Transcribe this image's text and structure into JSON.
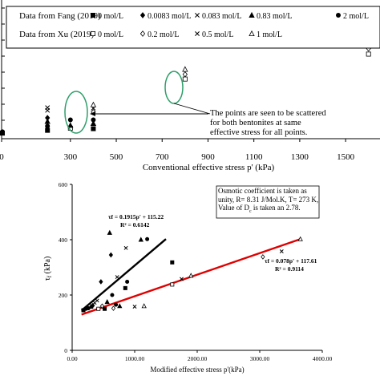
{
  "chart_data": [
    {
      "type": "scatter",
      "title": "",
      "xlabel": "Conventional effective stress p' (kPa)",
      "ylabel": "",
      "xlim": [
        0,
        1650
      ],
      "ylim": [
        0,
        500
      ],
      "x_ticks": [
        "0",
        "300",
        "500",
        "700",
        "900",
        "1100",
        "1300",
        "1500"
      ],
      "x_tick_values": [
        0,
        300,
        500,
        700,
        900,
        1100,
        1300,
        1500
      ],
      "grid": false,
      "legend": {
        "placement": "top",
        "groups": [
          {
            "source": "Data from Fang (2019)",
            "entries": [
              {
                "symbol": "■",
                "label": "0 mol/L"
              },
              {
                "symbol": "◆",
                "label": "0.0083 mol/L"
              },
              {
                "symbol": "✕",
                "label": "0.083 mol/L"
              },
              {
                "symbol": "▲",
                "label": "0.83 mol/L"
              },
              {
                "symbol": "●",
                "label": "2 mol/L"
              }
            ]
          },
          {
            "source": "Data from Xu (2019)",
            "entries": [
              {
                "symbol": "□",
                "label": "0 mol/L"
              },
              {
                "symbol": "◇",
                "label": "0.2 mol/L"
              },
              {
                "symbol": "✕",
                "label": "0.5 mol/L"
              },
              {
                "symbol": "△",
                "label": "1 mol/L"
              }
            ]
          }
        ]
      },
      "annotation": "The points are seen to be scattered for both bentonites at same effective stress for all points.",
      "points": [
        {
          "x": 0,
          "y": 20,
          "marker": "square",
          "fill": true
        },
        {
          "x": 0,
          "y": 25,
          "marker": "circle",
          "fill": true
        },
        {
          "x": 200,
          "y": 30,
          "marker": "square",
          "fill": true
        },
        {
          "x": 200,
          "y": 45,
          "marker": "circle",
          "fill": true
        },
        {
          "x": 200,
          "y": 62,
          "marker": "triangle",
          "fill": true
        },
        {
          "x": 200,
          "y": 75,
          "marker": "diamond",
          "fill": true
        },
        {
          "x": 200,
          "y": 102,
          "marker": "cross",
          "fill": false
        },
        {
          "x": 200,
          "y": 112,
          "marker": "cross",
          "fill": false
        },
        {
          "x": 300,
          "y": 38,
          "marker": "square",
          "fill": false
        },
        {
          "x": 300,
          "y": 48,
          "marker": "triangle",
          "fill": true
        },
        {
          "x": 300,
          "y": 68,
          "marker": "circle",
          "fill": true
        },
        {
          "x": 400,
          "y": 36,
          "marker": "square",
          "fill": true
        },
        {
          "x": 400,
          "y": 55,
          "marker": "triangle",
          "fill": true
        },
        {
          "x": 400,
          "y": 68,
          "marker": "circle",
          "fill": true
        },
        {
          "x": 400,
          "y": 96,
          "marker": "diamond",
          "fill": false
        },
        {
          "x": 400,
          "y": 110,
          "marker": "cross",
          "fill": false
        },
        {
          "x": 400,
          "y": 122,
          "marker": "triangle",
          "fill": false
        },
        {
          "x": 800,
          "y": 215,
          "marker": "square",
          "fill": false
        },
        {
          "x": 800,
          "y": 232,
          "marker": "diamond",
          "fill": false
        },
        {
          "x": 800,
          "y": 250,
          "marker": "triangle",
          "fill": false
        },
        {
          "x": 1600,
          "y": 305,
          "marker": "square",
          "fill": false
        },
        {
          "x": 1600,
          "y": 325,
          "marker": "diamond",
          "fill": false
        },
        {
          "x": 1600,
          "y": 343,
          "marker": "cross",
          "fill": false
        },
        {
          "x": 1600,
          "y": 367,
          "marker": "triangle",
          "fill": false
        }
      ]
    },
    {
      "type": "scatter",
      "title": "",
      "xlabel": "Modified effective stress p'(kPa)",
      "ylabel": "τf (kPa)",
      "xlim": [
        0,
        4000
      ],
      "ylim": [
        0,
        600
      ],
      "x_ticks": [
        "0.00",
        "1000.00",
        "2000.00",
        "3000.00",
        "4000.00"
      ],
      "x_tick_values": [
        0,
        1000,
        2000,
        3000,
        4000
      ],
      "y_ticks": [
        "0",
        "200",
        "400",
        "600"
      ],
      "y_tick_values": [
        0,
        200,
        400,
        600
      ],
      "grid": false,
      "info_box": "Osmotic coefficient is taken as unity, R= 8.31 J/Mol.K, T= 273 K, Value of Dc is taken an 2.78.",
      "fits": [
        {
          "equation": "τf = 0.1915p' + 115.22",
          "r2": "R² = 0.6142",
          "slope": 0.1915,
          "intercept": 115.22,
          "x_range": [
            150,
            1500
          ],
          "color": "#000000"
        },
        {
          "equation": "τf = 0.078p' + 117.61",
          "r2": "R² = 0.9114",
          "slope": 0.078,
          "intercept": 117.61,
          "x_range": [
            150,
            3650
          ],
          "color": "#e00000"
        }
      ],
      "points": [
        {
          "x": 180,
          "y": 145,
          "marker": "square",
          "fill": true
        },
        {
          "x": 220,
          "y": 150,
          "marker": "circle",
          "fill": true
        },
        {
          "x": 260,
          "y": 152,
          "marker": "circle",
          "fill": true
        },
        {
          "x": 300,
          "y": 158,
          "marker": "triangle",
          "fill": true
        },
        {
          "x": 330,
          "y": 162,
          "marker": "diamond",
          "fill": true
        },
        {
          "x": 360,
          "y": 172,
          "marker": "cross",
          "fill": false
        },
        {
          "x": 400,
          "y": 180,
          "marker": "cross",
          "fill": false
        },
        {
          "x": 420,
          "y": 150,
          "marker": "square",
          "fill": false
        },
        {
          "x": 460,
          "y": 248,
          "marker": "diamond",
          "fill": true
        },
        {
          "x": 480,
          "y": 160,
          "marker": "diamond",
          "fill": false
        },
        {
          "x": 520,
          "y": 150,
          "marker": "square",
          "fill": true
        },
        {
          "x": 560,
          "y": 175,
          "marker": "triangle",
          "fill": true
        },
        {
          "x": 600,
          "y": 425,
          "marker": "triangle",
          "fill": true
        },
        {
          "x": 620,
          "y": 345,
          "marker": "diamond",
          "fill": true
        },
        {
          "x": 640,
          "y": 200,
          "marker": "circle",
          "fill": true
        },
        {
          "x": 660,
          "y": 152,
          "marker": "diamond",
          "fill": false
        },
        {
          "x": 700,
          "y": 165,
          "marker": "circle",
          "fill": true
        },
        {
          "x": 720,
          "y": 265,
          "marker": "cross",
          "fill": false
        },
        {
          "x": 760,
          "y": 160,
          "marker": "triangle",
          "fill": true
        },
        {
          "x": 850,
          "y": 225,
          "marker": "square",
          "fill": true
        },
        {
          "x": 860,
          "y": 370,
          "marker": "cross",
          "fill": false
        },
        {
          "x": 880,
          "y": 248,
          "marker": "circle",
          "fill": true
        },
        {
          "x": 1000,
          "y": 158,
          "marker": "cross",
          "fill": false
        },
        {
          "x": 1100,
          "y": 400,
          "marker": "triangle",
          "fill": true
        },
        {
          "x": 1150,
          "y": 160,
          "marker": "triangle",
          "fill": false
        },
        {
          "x": 1200,
          "y": 402,
          "marker": "circle",
          "fill": true
        },
        {
          "x": 1600,
          "y": 318,
          "marker": "square",
          "fill": true
        },
        {
          "x": 1600,
          "y": 238,
          "marker": "square",
          "fill": false
        },
        {
          "x": 1750,
          "y": 258,
          "marker": "cross",
          "fill": false
        },
        {
          "x": 1900,
          "y": 270,
          "marker": "triangle",
          "fill": false
        },
        {
          "x": 3050,
          "y": 338,
          "marker": "diamond",
          "fill": false
        },
        {
          "x": 3350,
          "y": 358,
          "marker": "cross",
          "fill": false
        },
        {
          "x": 3650,
          "y": 402,
          "marker": "triangle",
          "fill": false
        }
      ]
    }
  ]
}
